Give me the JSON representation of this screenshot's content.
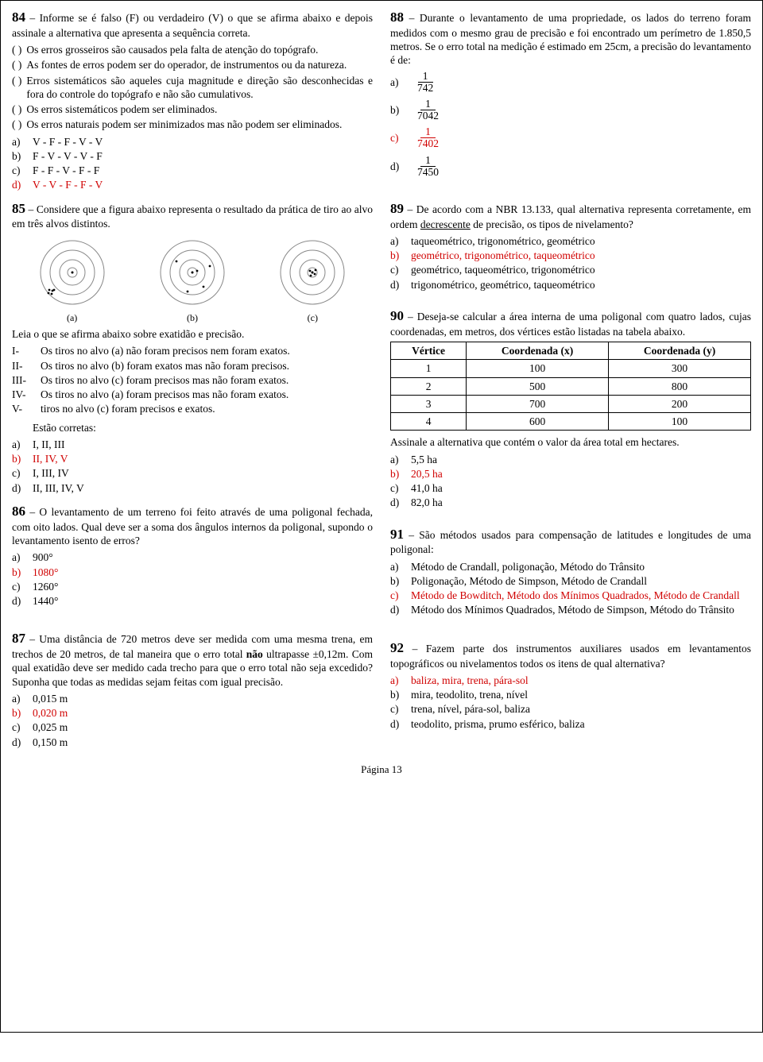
{
  "page_number": "Página 13",
  "q84": {
    "num": "84",
    "intro": " – Informe se é falso (F) ou verdadeiro (V) o que se afirma abaixo e depois assinale a alternativa que apresenta a sequência correta.",
    "statements": [
      "Os erros grosseiros são causados pela falta de atenção do topógrafo.",
      "As fontes de erros podem ser do operador, de instrumentos ou da natureza.",
      "Erros sistemáticos são aqueles cuja magnitude e direção são desconhecidas e fora do controle do topógrafo e não são cumulativos.",
      "Os erros sistemáticos podem ser eliminados.",
      "Os erros naturais podem ser minimizados mas não podem ser eliminados."
    ],
    "options": [
      {
        "l": "a)",
        "t": "V - F - F - V - V",
        "correct": false
      },
      {
        "l": "b)",
        "t": "F - V - V - V - F",
        "correct": false
      },
      {
        "l": "c)",
        "t": "F - F - V - F - F",
        "correct": false
      },
      {
        "l": "d)",
        "t": "V - V - F - F - V",
        "correct": true
      }
    ]
  },
  "q85": {
    "num": "85",
    "intro": " – Considere que a figura abaixo representa o resultado da prática de tiro ao alvo em três alvos distintos.",
    "caps": [
      "(a)",
      "(b)",
      "(c)"
    ],
    "post": "Leia o que se afirma abaixo sobre exatidão e precisão.",
    "romans": [
      {
        "l": "I-",
        "t": "Os tiros no alvo (a) não foram precisos nem foram exatos."
      },
      {
        "l": "II-",
        "t": "Os tiros no alvo (b) foram exatos mas não foram precisos."
      },
      {
        "l": "III-",
        "t": "Os tiros no alvo (c) foram precisos mas não foram exatos."
      },
      {
        "l": "IV-",
        "t": "Os tiros no alvo (a) foram precisos mas não foram exatos."
      },
      {
        "l": "V-",
        "t": "tiros no alvo (c) foram precisos e exatos."
      }
    ],
    "sub": "Estão corretas:",
    "options": [
      {
        "l": "a)",
        "t": "I, II, III",
        "correct": false
      },
      {
        "l": "b)",
        "t": "II, IV, V",
        "correct": true
      },
      {
        "l": "c)",
        "t": "I, III, IV",
        "correct": false
      },
      {
        "l": "d)",
        "t": "II, III, IV, V",
        "correct": false
      }
    ]
  },
  "q86": {
    "num": "86",
    "intro": " – O levantamento de um terreno foi feito através de uma poligonal fechada, com oito lados. Qual deve ser a soma dos ângulos internos da poligonal, supondo o levantamento isento de erros?",
    "options": [
      {
        "l": "a)",
        "t": "900°",
        "correct": false
      },
      {
        "l": "b)",
        "t": "1080°",
        "correct": true
      },
      {
        "l": "c)",
        "t": "1260°",
        "correct": false
      },
      {
        "l": "d)",
        "t": "1440°",
        "correct": false
      }
    ]
  },
  "q87": {
    "num": "87",
    "intro_pre": " – Uma distância de 720 metros deve ser medida com uma mesma trena, em trechos de 20 metros, de tal maneira que o erro total ",
    "intro_bold": "não",
    "intro_post": " ultrapasse ±0,12m. Com qual exatidão deve ser medido cada trecho para que o erro total não seja excedido? Suponha que todas as medidas sejam feitas com igual precisão.",
    "options": [
      {
        "l": "a)",
        "t": "0,015 m",
        "correct": false
      },
      {
        "l": "b)",
        "t": "0,020 m",
        "correct": true
      },
      {
        "l": "c)",
        "t": "0,025 m",
        "correct": false
      },
      {
        "l": "d)",
        "t": "0,150 m",
        "correct": false
      }
    ]
  },
  "q88": {
    "num": "88",
    "intro": " – Durante o levantamento de uma propriedade, os lados do terreno foram medidos com o mesmo grau de precisão e foi encontrado um perímetro de 1.850,5 metros. Se o erro total na medição é estimado em 25cm, a precisão do levantamento é de:",
    "options": [
      {
        "l": "a)",
        "num": "1",
        "den": "742",
        "correct": false
      },
      {
        "l": "b)",
        "num": "1",
        "den": "7042",
        "correct": false
      },
      {
        "l": "c)",
        "num": "1",
        "den": "7402",
        "correct": true
      },
      {
        "l": "d)",
        "num": "1",
        "den": "7450",
        "correct": false
      }
    ]
  },
  "q89": {
    "num": "89",
    "intro_pre": " – De acordo com a NBR 13.133, qual alternativa representa corretamente, em ordem ",
    "intro_under": "decrescente",
    "intro_post": " de precisão, os tipos de nivelamento?",
    "options": [
      {
        "l": "a)",
        "t": "taqueométrico, trigonométrico, geométrico",
        "correct": false
      },
      {
        "l": "b)",
        "t": "geométrico, trigonométrico, taqueométrico",
        "correct": true
      },
      {
        "l": "c)",
        "t": "geométrico, taqueométrico, trigonométrico",
        "correct": false
      },
      {
        "l": "d)",
        "t": "trigonométrico, geométrico, taqueométrico",
        "correct": false
      }
    ]
  },
  "q90": {
    "num": "90",
    "intro": " – Deseja-se calcular a área interna de uma poligonal com quatro lados, cujas coordenadas, em metros, dos vértices estão listadas na tabela abaixo.",
    "table": {
      "headers": [
        "Vértice",
        "Coordenada (x)",
        "Coordenada (y)"
      ],
      "rows": [
        [
          "1",
          "100",
          "300"
        ],
        [
          "2",
          "500",
          "800"
        ],
        [
          "3",
          "700",
          "200"
        ],
        [
          "4",
          "600",
          "100"
        ]
      ]
    },
    "post": "Assinale a alternativa que contém o valor da área total em hectares.",
    "options": [
      {
        "l": "a)",
        "t": "5,5 ha",
        "correct": false
      },
      {
        "l": "b)",
        "t": "20,5 ha",
        "correct": true
      },
      {
        "l": "c)",
        "t": "41,0 ha",
        "correct": false
      },
      {
        "l": "d)",
        "t": "82,0 ha",
        "correct": false
      }
    ]
  },
  "q91": {
    "num": "91",
    "intro": " – São métodos usados para compensação de latitudes e longitudes de uma poligonal:",
    "options": [
      {
        "l": "a)",
        "t": "Método de Crandall, poligonação, Método do Trânsito",
        "correct": false
      },
      {
        "l": "b)",
        "t": "Poligonação, Método de Simpson, Método de Crandall",
        "correct": false
      },
      {
        "l": "c)",
        "t": "Método de Bowditch, Método dos Mínimos Quadrados, Método de Crandall",
        "correct": true
      },
      {
        "l": "d)",
        "t": "Método dos Mínimos Quadrados, Método de Simpson, Método do Trânsito",
        "correct": false
      }
    ]
  },
  "q92": {
    "num": "92",
    "intro": " – Fazem parte dos instrumentos auxiliares usados em levantamentos topográficos ou nivelamentos todos os itens de qual alternativa?",
    "options": [
      {
        "l": "a)",
        "t": "baliza, mira, trena, pára-sol",
        "correct": true
      },
      {
        "l": "b)",
        "t": "mira, teodolito, trena, nível",
        "correct": false
      },
      {
        "l": "c)",
        "t": "trena, nível, pára-sol, baliza",
        "correct": false
      },
      {
        "l": "d)",
        "t": "teodolito, prisma, prumo esférico, baliza",
        "correct": false
      }
    ]
  },
  "paren": "(   )",
  "colors": {
    "answer": "#d00000",
    "text": "#000000",
    "border": "#000000"
  },
  "fig": {
    "radii": [
      40,
      28,
      16,
      6
    ],
    "stroke": "#888",
    "dot_r": 1.4,
    "targets": {
      "a": [
        [
          -29,
          22
        ],
        [
          -26,
          27
        ],
        [
          -23,
          22
        ],
        [
          -30,
          26
        ],
        [
          -25,
          23
        ]
      ],
      "b": [
        [
          -20,
          -14
        ],
        [
          14,
          18
        ],
        [
          22,
          -8
        ],
        [
          -6,
          24
        ],
        [
          6,
          -2
        ]
      ],
      "c": [
        [
          -3,
          -2
        ],
        [
          3,
          2
        ],
        [
          -2,
          4
        ],
        [
          4,
          -3
        ],
        [
          0,
          0
        ]
      ]
    }
  }
}
